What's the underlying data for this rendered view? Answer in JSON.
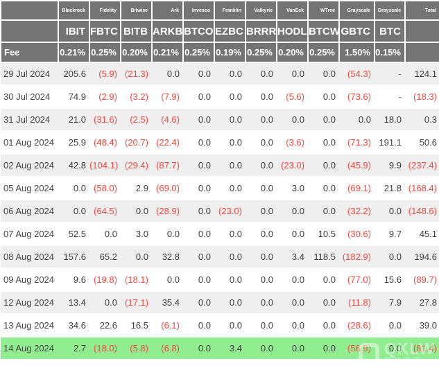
{
  "colors": {
    "header_bg": "#747474",
    "negative_red": "#fb443c",
    "highlight_green": "#90ee90",
    "row_alt_gray": "#efefef"
  },
  "chart_data": {
    "type": "table",
    "total_label": "Total",
    "fee_label": "Fee",
    "providers": [
      "Blackrock",
      "Fidelity",
      "Bitwise",
      "Ark",
      "Invesco",
      "Franklin",
      "Valkyrie",
      "VanEck",
      "WTree",
      "Grayscale",
      "Grayscale"
    ],
    "tickers": [
      "IBIT",
      "FBTC",
      "BITB",
      "ARKB",
      "BTCO",
      "EZBC",
      "BRRR",
      "HODL",
      "BTCW",
      "GBTC",
      "BTC"
    ],
    "fees": [
      "0.21%",
      "0.25%",
      "0.20%",
      "0.21%",
      "0.25%",
      "0.19%",
      "0.25%",
      "0.20%",
      "0.25%",
      "1.50%",
      "0.15%"
    ],
    "rows": [
      {
        "date": "29 Jul 2024",
        "values": [
          "205.6",
          "(5.9)",
          "(21.3)",
          "0.0",
          "0.0",
          "0.0",
          "0.0",
          "0.0",
          "0.0",
          "(54.3)",
          "-"
        ],
        "total": "124.1",
        "highlight": false
      },
      {
        "date": "30 Jul 2024",
        "values": [
          "74.9",
          "(2.9)",
          "(3.2)",
          "(7.9)",
          "0.0",
          "0.0",
          "0.0",
          "(5.6)",
          "0.0",
          "(73.6)",
          "-"
        ],
        "total": "(18.3)",
        "highlight": false
      },
      {
        "date": "31 Jul 2024",
        "values": [
          "21.0",
          "(31.6)",
          "(2.5)",
          "(4.6)",
          "0.0",
          "0.0",
          "0.0",
          "0.0",
          "0.0",
          "0.0",
          "18.0"
        ],
        "total": "0.3",
        "highlight": false
      },
      {
        "date": "01 Aug 2024",
        "values": [
          "25.9",
          "(48.4)",
          "(20.7)",
          "(22.4)",
          "0.0",
          "0.0",
          "0.0",
          "(3.6)",
          "0.0",
          "(71.3)",
          "191.1"
        ],
        "total": "50.6",
        "highlight": false
      },
      {
        "date": "02 Aug 2024",
        "values": [
          "42.8",
          "(104.1)",
          "(29.4)",
          "(87.7)",
          "0.0",
          "0.0",
          "0.0",
          "(23.0)",
          "0.0",
          "(45.9)",
          "9.9"
        ],
        "total": "(237.4)",
        "highlight": false
      },
      {
        "date": "05 Aug 2024",
        "values": [
          "0.0",
          "(58.0)",
          "2.9",
          "(69.0)",
          "0.0",
          "0.0",
          "0.0",
          "3.0",
          "0.0",
          "(69.1)",
          "21.8"
        ],
        "total": "(168.4)",
        "highlight": false
      },
      {
        "date": "06 Aug 2024",
        "values": [
          "0.0",
          "(64.5)",
          "0.0",
          "(28.9)",
          "0.0",
          "(23.0)",
          "0.0",
          "0.0",
          "0.0",
          "(32.2)",
          "0.0"
        ],
        "total": "(148.6)",
        "highlight": false
      },
      {
        "date": "07 Aug 2024",
        "values": [
          "52.5",
          "0.0",
          "3.0",
          "0.0",
          "0.0",
          "0.0",
          "0.0",
          "0.0",
          "10.5",
          "(30.6)",
          "9.7"
        ],
        "total": "45.1",
        "highlight": false
      },
      {
        "date": "08 Aug 2024",
        "values": [
          "157.6",
          "65.2",
          "0.0",
          "32.8",
          "0.0",
          "0.0",
          "0.0",
          "3.4",
          "118.5",
          "(182.9)",
          "0.0"
        ],
        "total": "194.6",
        "highlight": false
      },
      {
        "date": "09 Aug 2024",
        "values": [
          "9.6",
          "(19.8)",
          "(18.1)",
          "0.0",
          "0.0",
          "0.0",
          "0.0",
          "0.0",
          "0.0",
          "(77.0)",
          "15.6"
        ],
        "total": "(89.7)",
        "highlight": false
      },
      {
        "date": "12 Aug 2024",
        "values": [
          "13.4",
          "0.0",
          "(17.1)",
          "35.4",
          "0.0",
          "0.0",
          "0.0",
          "0.0",
          "0.0",
          "(11.8)",
          "7.9"
        ],
        "total": "27.8",
        "highlight": false
      },
      {
        "date": "13 Aug 2024",
        "values": [
          "34.6",
          "22.6",
          "16.5",
          "(6.1)",
          "0.0",
          "0.0",
          "0.0",
          "0.0",
          "0.0",
          "(28.6)",
          "0.0"
        ],
        "total": "39.0",
        "highlight": false
      },
      {
        "date": "14 Aug 2024",
        "values": [
          "2.7",
          "(18.0)",
          "(5.8)",
          "(6.8)",
          "0.0",
          "3.4",
          "0.0",
          "0.0",
          "0.0",
          "(56.9)",
          "0.0"
        ],
        "total": "(81.4)",
        "highlight": true
      }
    ]
  },
  "watermark": {
    "logo_text": "QKLW",
    "subtext": "区块链网"
  }
}
